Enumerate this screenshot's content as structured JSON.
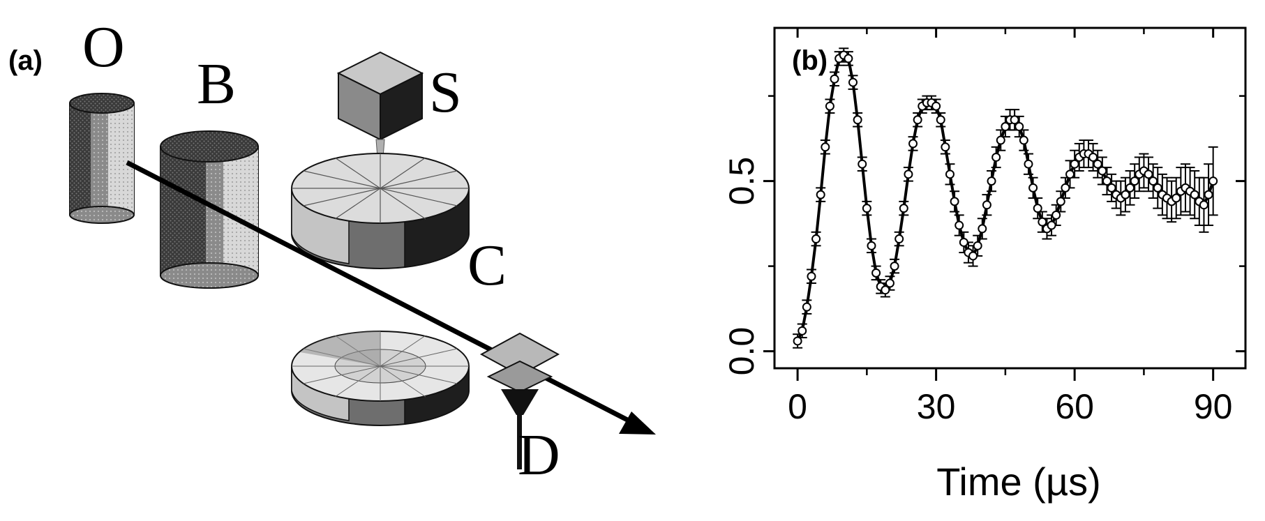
{
  "panels": {
    "a": {
      "label": "(a)",
      "parts": {
        "oven": "O",
        "buncher": "B",
        "source": "S",
        "cavity": "C",
        "detector": "D"
      }
    },
    "b": {
      "label": "(b)"
    }
  },
  "chart_data": {
    "type": "scatter",
    "xlabel": "Time (µs)",
    "ylabel": "",
    "xlim": [
      -5,
      97
    ],
    "ylim": [
      -0.05,
      0.95
    ],
    "xticks": [
      0,
      30,
      60,
      90
    ],
    "yticks": [
      0.0,
      0.5
    ],
    "xtick_labels": [
      "0",
      "30",
      "60",
      "90"
    ],
    "ytick_labels": [
      "0.0",
      "0.5"
    ],
    "grid": false,
    "legend": "none",
    "series": [
      {
        "marker": "open-circle",
        "error_bars": true,
        "x": [
          0,
          1,
          2,
          3,
          4,
          5,
          6,
          7,
          8,
          9,
          10,
          11,
          12,
          13,
          14,
          15,
          16,
          17,
          18,
          19,
          20,
          21,
          22,
          23,
          24,
          25,
          26,
          27,
          28,
          29,
          30,
          31,
          32,
          33,
          34,
          35,
          36,
          37,
          38,
          39,
          40,
          41,
          42,
          43,
          44,
          45,
          46,
          47,
          48,
          49,
          50,
          51,
          52,
          53,
          54,
          55,
          56,
          57,
          58,
          59,
          60,
          61,
          62,
          63,
          64,
          65,
          66,
          67,
          68,
          69,
          70,
          71,
          72,
          73,
          74,
          75,
          76,
          77,
          78,
          79,
          80,
          81,
          82,
          83,
          84,
          85,
          86,
          87,
          88,
          89,
          90
        ],
        "y": [
          0.03,
          0.06,
          0.13,
          0.22,
          0.33,
          0.46,
          0.6,
          0.72,
          0.8,
          0.86,
          0.87,
          0.86,
          0.79,
          0.68,
          0.55,
          0.42,
          0.31,
          0.23,
          0.19,
          0.18,
          0.2,
          0.25,
          0.33,
          0.42,
          0.52,
          0.61,
          0.68,
          0.72,
          0.73,
          0.73,
          0.72,
          0.68,
          0.6,
          0.52,
          0.44,
          0.37,
          0.32,
          0.29,
          0.28,
          0.31,
          0.36,
          0.43,
          0.5,
          0.57,
          0.62,
          0.66,
          0.68,
          0.68,
          0.66,
          0.62,
          0.55,
          0.48,
          0.42,
          0.38,
          0.36,
          0.37,
          0.4,
          0.44,
          0.48,
          0.52,
          0.55,
          0.57,
          0.58,
          0.58,
          0.57,
          0.55,
          0.53,
          0.5,
          0.48,
          0.46,
          0.45,
          0.46,
          0.48,
          0.5,
          0.52,
          0.53,
          0.52,
          0.5,
          0.48,
          0.46,
          0.45,
          0.44,
          0.45,
          0.47,
          0.48,
          0.47,
          0.46,
          0.44,
          0.43,
          0.46,
          0.5
        ],
        "error": [
          0.02,
          0.02,
          0.02,
          0.02,
          0.02,
          0.02,
          0.02,
          0.02,
          0.02,
          0.02,
          0.02,
          0.02,
          0.02,
          0.02,
          0.02,
          0.02,
          0.02,
          0.02,
          0.02,
          0.02,
          0.02,
          0.02,
          0.02,
          0.02,
          0.02,
          0.02,
          0.02,
          0.02,
          0.02,
          0.02,
          0.02,
          0.02,
          0.02,
          0.03,
          0.03,
          0.03,
          0.03,
          0.03,
          0.03,
          0.03,
          0.03,
          0.03,
          0.03,
          0.03,
          0.03,
          0.03,
          0.03,
          0.03,
          0.03,
          0.03,
          0.03,
          0.03,
          0.03,
          0.03,
          0.03,
          0.03,
          0.03,
          0.03,
          0.03,
          0.04,
          0.04,
          0.04,
          0.04,
          0.04,
          0.04,
          0.04,
          0.04,
          0.04,
          0.04,
          0.04,
          0.05,
          0.05,
          0.05,
          0.05,
          0.05,
          0.05,
          0.05,
          0.05,
          0.06,
          0.06,
          0.06,
          0.06,
          0.06,
          0.07,
          0.07,
          0.07,
          0.07,
          0.07,
          0.08,
          0.09,
          0.1
        ]
      },
      {
        "style": "solid-line",
        "x": [
          0,
          1,
          2,
          3,
          4,
          5,
          6,
          7,
          8,
          9,
          10,
          11,
          12,
          13,
          14,
          15,
          16,
          17,
          18,
          19,
          20,
          21,
          22,
          23,
          24,
          25,
          26,
          27,
          28,
          29,
          30,
          31,
          32,
          33,
          34,
          35,
          36,
          37,
          38,
          39,
          40,
          41,
          42,
          43,
          44,
          45,
          46,
          47,
          48,
          49,
          50,
          51,
          52,
          53,
          54,
          55,
          56,
          57,
          58,
          59,
          60,
          61,
          62,
          63,
          64,
          65,
          66,
          67,
          68,
          69,
          70,
          71,
          72,
          73,
          74,
          75,
          76,
          77,
          78,
          79,
          80,
          81,
          82,
          83,
          84,
          85,
          86,
          87,
          88,
          89,
          90
        ],
        "y": [
          0.03,
          0.06,
          0.13,
          0.22,
          0.33,
          0.46,
          0.6,
          0.72,
          0.8,
          0.86,
          0.87,
          0.86,
          0.79,
          0.68,
          0.55,
          0.42,
          0.31,
          0.23,
          0.19,
          0.18,
          0.2,
          0.25,
          0.33,
          0.42,
          0.52,
          0.61,
          0.68,
          0.72,
          0.73,
          0.73,
          0.72,
          0.68,
          0.6,
          0.52,
          0.44,
          0.37,
          0.32,
          0.29,
          0.28,
          0.31,
          0.36,
          0.43,
          0.5,
          0.57,
          0.62,
          0.66,
          0.68,
          0.68,
          0.66,
          0.62,
          0.55,
          0.48,
          0.42,
          0.38,
          0.36,
          0.37,
          0.4,
          0.44,
          0.48,
          0.52,
          0.55,
          0.57,
          0.58,
          0.58,
          0.57,
          0.55,
          0.53,
          0.5,
          0.48,
          0.46,
          0.45,
          0.46,
          0.48,
          0.5,
          0.52,
          0.53,
          0.52,
          0.5,
          0.48,
          0.46,
          0.45,
          0.44,
          0.45,
          0.47,
          0.48,
          0.47,
          0.46,
          0.44,
          0.43,
          0.46,
          0.5
        ]
      }
    ]
  }
}
